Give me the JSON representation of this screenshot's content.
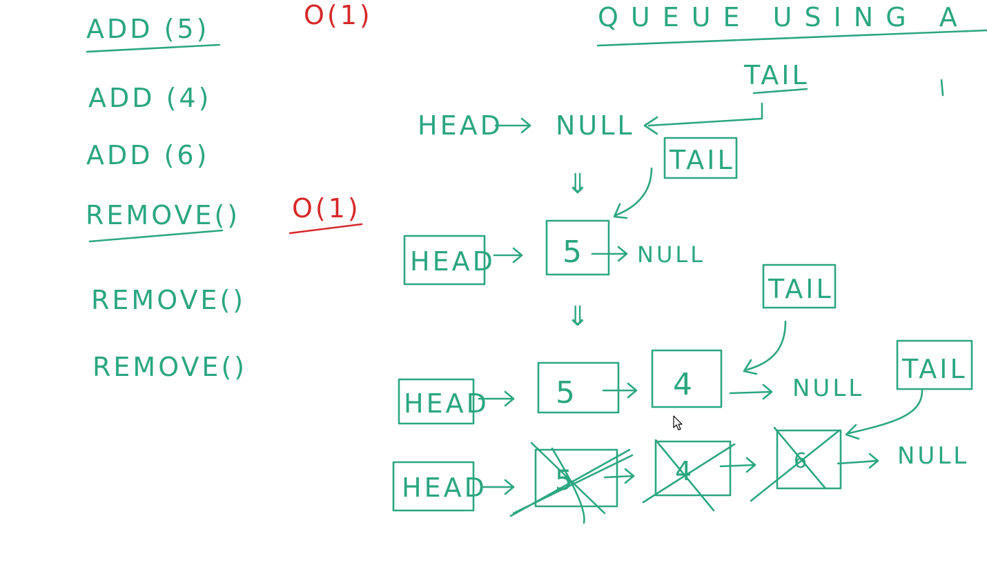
{
  "colors": {
    "ink": "#2aa680",
    "red": "#d62828",
    "background": "#ffffff"
  },
  "left": {
    "ops": [
      "ADD (5)",
      "ADD (4)",
      "ADD (6)",
      "REMOVE()",
      "REMOVE()",
      "REMOVE()"
    ],
    "add_cost": "O(1)",
    "remove_cost": "O(1)"
  },
  "header": {
    "title": "QUEUE USING A"
  },
  "labels": {
    "head": "HEAD",
    "tail": "TAIL",
    "null": "NULL",
    "down_arrow": "⇓"
  },
  "nodes": {
    "n5": "5",
    "n4": "4",
    "n6": "6"
  },
  "cursor_icon": "mouse-pointer-icon"
}
